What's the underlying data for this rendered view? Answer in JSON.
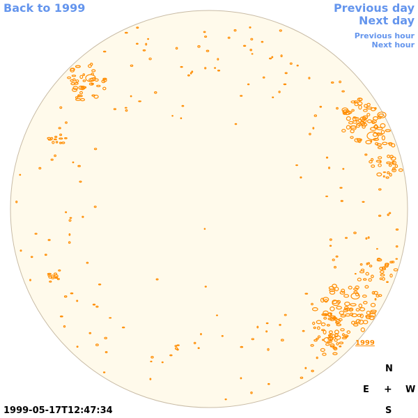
{
  "navigation": {
    "back_label": "Back to 1999",
    "previous_day_label": "Previous day",
    "next_day_label": "Next day",
    "previous_hour_label": "Previous hour",
    "next_hour_label": "Next hour"
  },
  "sun_map": {
    "year_label": "1999",
    "disk_color": "#fffaeb",
    "limb_color": "#c8bba5",
    "contour_color": "#ff8c00"
  },
  "compass": {
    "north": "N",
    "east": "E",
    "center": "+",
    "west": "W",
    "south": "S"
  },
  "timestamp": "1999-05-17T12:47:34",
  "colors": {
    "link": "#6495ed",
    "text": "#000000"
  }
}
